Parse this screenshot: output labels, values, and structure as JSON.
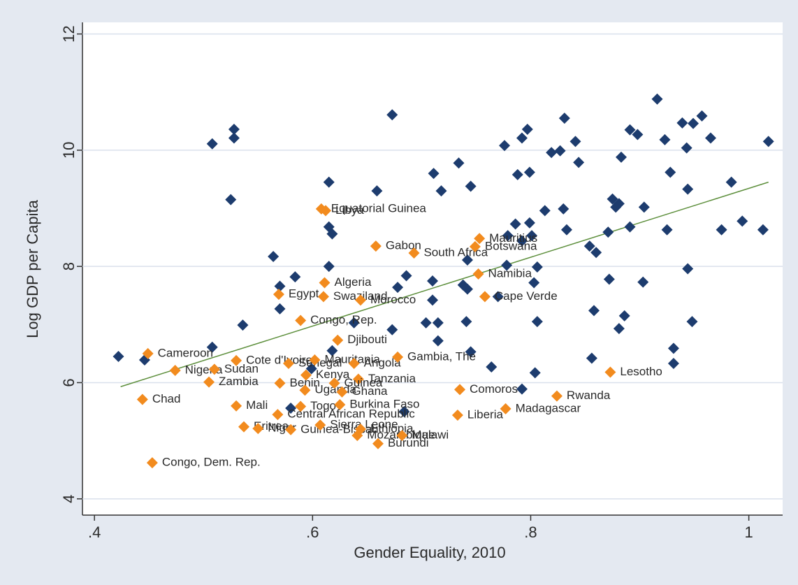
{
  "chart_data": {
    "type": "scatter",
    "xlabel": "Gender Equality, 2010",
    "ylabel": "Log GDP per Capita",
    "xlim": [
      0.389,
      1.031
    ],
    "ylim": [
      3.72,
      12.2
    ],
    "xticks": [
      {
        "value": 0.4,
        "label": ".4"
      },
      {
        "value": 0.6,
        "label": ".6"
      },
      {
        "value": 0.8,
        "label": ".8"
      },
      {
        "value": 1,
        "label": "1"
      }
    ],
    "yticks": [
      4,
      6,
      8,
      10,
      12
    ],
    "grid": true,
    "series": [
      {
        "color": "#1d3c6e",
        "x": [
          0.422,
          0.446,
          0.508,
          0.528,
          0.528,
          0.525,
          0.508,
          0.536,
          0.564,
          0.57,
          0.57,
          0.584,
          0.615,
          0.615,
          0.618,
          0.615,
          0.599,
          0.58,
          0.618,
          0.638,
          0.673,
          0.659,
          0.673,
          0.678,
          0.686,
          0.684,
          0.71,
          0.71,
          0.715,
          0.715,
          0.704,
          0.711,
          0.718,
          0.734,
          0.745,
          0.742,
          0.738,
          0.742,
          0.741,
          0.745,
          0.764,
          0.776,
          0.77,
          0.778,
          0.779,
          0.786,
          0.792,
          0.788,
          0.792,
          0.797,
          0.799,
          0.799,
          0.801,
          0.806,
          0.803,
          0.806,
          0.804,
          0.792,
          0.819,
          0.813,
          0.827,
          0.83,
          0.831,
          0.833,
          0.841,
          0.844,
          0.854,
          0.86,
          0.858,
          0.856,
          0.872,
          0.871,
          0.875,
          0.878,
          0.881,
          0.883,
          0.881,
          0.886,
          0.891,
          0.891,
          0.898,
          0.903,
          0.904,
          0.916,
          0.923,
          0.925,
          0.928,
          0.931,
          0.931,
          0.939,
          0.943,
          0.944,
          0.944,
          0.948,
          0.949,
          0.957,
          0.965,
          0.975,
          0.984,
          0.994,
          1.013,
          1.018
        ],
        "y": [
          6.45,
          6.39,
          10.11,
          10.36,
          10.21,
          9.15,
          6.61,
          6.99,
          8.17,
          7.66,
          7.27,
          7.82,
          9.45,
          8.68,
          8.56,
          8.0,
          6.24,
          5.56,
          6.55,
          7.03,
          10.61,
          9.3,
          6.91,
          7.64,
          7.84,
          5.5,
          7.75,
          7.42,
          7.03,
          6.72,
          7.03,
          9.6,
          9.3,
          9.78,
          9.38,
          8.11,
          7.68,
          7.61,
          7.05,
          6.53,
          6.27,
          10.08,
          7.48,
          8.02,
          8.53,
          8.73,
          8.44,
          9.58,
          10.21,
          10.36,
          9.62,
          8.75,
          8.53,
          7.99,
          7.72,
          7.05,
          6.17,
          5.89,
          9.96,
          8.96,
          9.99,
          8.99,
          10.55,
          8.63,
          10.15,
          9.79,
          8.35,
          8.24,
          7.24,
          6.42,
          7.78,
          8.59,
          9.16,
          9.02,
          9.08,
          9.88,
          6.93,
          7.15,
          8.68,
          10.35,
          10.27,
          7.73,
          9.02,
          10.88,
          10.18,
          8.63,
          9.62,
          6.59,
          6.33,
          10.47,
          10.04,
          7.96,
          9.33,
          7.05,
          10.46,
          10.59,
          10.21,
          8.63,
          9.45,
          8.78,
          8.63,
          10.15
        ]
      },
      {
        "color": "#f28b1e",
        "label_color": "#a5483a",
        "labels": [
          "Equatorial Guinea",
          "Libya",
          "Gabon",
          "South Africa",
          "Mauritius",
          "Botswana",
          "Namibia",
          "Algeria",
          "Egypt",
          "Swaziland",
          "Morocco",
          "Cape Verde",
          "Congo, Rep.",
          "Djibouti",
          "Cameroon",
          "Nigeria",
          "Sudan",
          "Cote d'Ivoire",
          "Senegal",
          "Mauritania",
          "Angola",
          "Gambia, The",
          "Lesotho",
          "Kenya",
          "Tanzania",
          "Zambia",
          "Benin",
          "Uganda",
          "Guinea",
          "Ghana",
          "Comoros",
          "Rwanda",
          "Chad",
          "Mali",
          "Togo",
          "Burkina Faso",
          "Madagascar",
          "Central African Republic",
          "Liberia",
          "Eritrea",
          "Niger",
          "Guinea-Bissau",
          "Sierra Leone",
          "Mozambique",
          "Ethiopia",
          "Malawi",
          "Burundi",
          "Congo, Dem. Rep."
        ],
        "x": [
          0.608,
          0.612,
          0.658,
          0.693,
          0.753,
          0.749,
          0.752,
          0.611,
          0.569,
          0.61,
          0.644,
          0.758,
          0.589,
          0.623,
          0.449,
          0.474,
          0.51,
          0.53,
          0.578,
          0.602,
          0.638,
          0.678,
          0.873,
          0.594,
          0.642,
          0.505,
          0.57,
          0.593,
          0.62,
          0.627,
          0.735,
          0.824,
          0.444,
          0.53,
          0.589,
          0.625,
          0.777,
          0.568,
          0.733,
          0.537,
          0.55,
          0.58,
          0.607,
          0.641,
          0.644,
          0.682,
          0.66,
          0.453
        ],
        "y": [
          8.99,
          8.96,
          8.35,
          8.23,
          8.48,
          8.34,
          7.87,
          7.72,
          7.52,
          7.48,
          7.42,
          7.48,
          7.07,
          6.73,
          6.5,
          6.21,
          6.23,
          6.38,
          6.33,
          6.39,
          6.33,
          6.44,
          6.18,
          6.13,
          6.06,
          6.01,
          5.99,
          5.87,
          5.99,
          5.84,
          5.88,
          5.77,
          5.71,
          5.6,
          5.59,
          5.62,
          5.55,
          5.45,
          5.44,
          5.24,
          5.21,
          5.19,
          5.27,
          5.09,
          5.2,
          5.09,
          4.95,
          4.62
        ]
      }
    ],
    "fit": {
      "color": "#5d8f3c",
      "x": [
        0.424,
        1.018
      ],
      "y": [
        5.93,
        9.45
      ]
    }
  }
}
